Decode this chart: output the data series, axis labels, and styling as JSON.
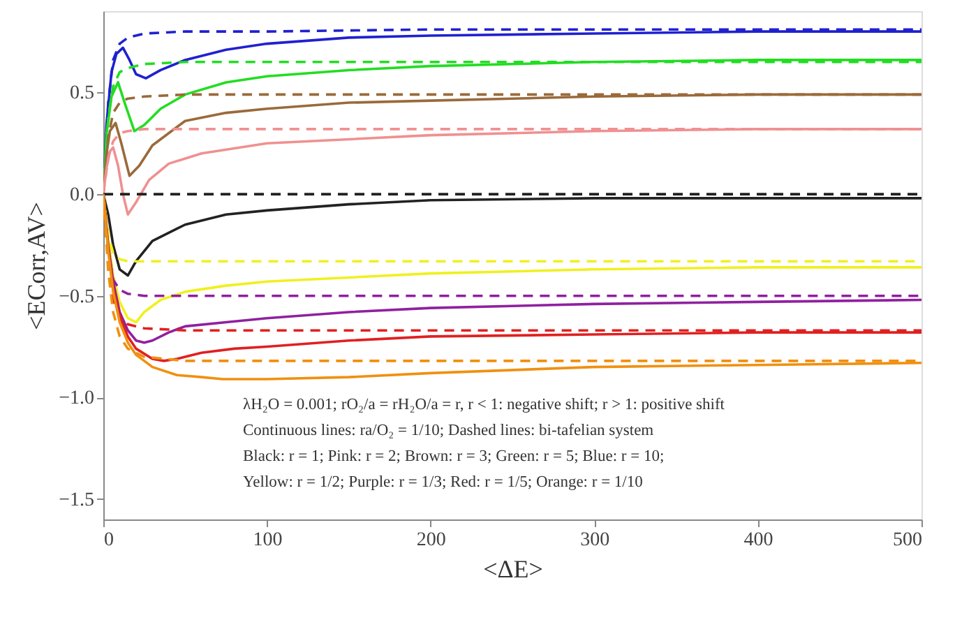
{
  "chart_data": {
    "type": "line",
    "xlabel": "<ΔE>",
    "ylabel": "<ECorr,AV>",
    "xlim": [
      0,
      500
    ],
    "ylim": [
      -1.6,
      0.9
    ],
    "xticks": [
      0,
      100,
      200,
      300,
      400,
      500
    ],
    "yticks": [
      {
        "value": -1.5,
        "label": "−1.5"
      },
      {
        "value": -1.0,
        "label": "−1.0"
      },
      {
        "value": -0.5,
        "label": "−0.5"
      },
      {
        "value": 0,
        "label": "0.0"
      },
      {
        "value": 0.5,
        "label": "0.5"
      }
    ],
    "grid": false,
    "annotations": [
      "λH₂O = 0.001; rO₂/a = rH₂O/a = r, r < 1: negative shift; r > 1: positive shift",
      "Continuous lines: ra/O₂ = 1/10; Dashed lines: bi-tafelian system",
      "Black: r = 1; Pink: r = 2; Brown: r = 3; Green: r = 5; Blue: r = 10;",
      "Yellow: r = 1/2; Purple: r = 1/3; Red: r = 1/5; Orange: r = 1/10"
    ],
    "series": [
      {
        "color": "#2020d0",
        "line_style": "solid",
        "x": [
          0,
          2,
          5,
          8,
          12,
          16,
          20,
          26,
          35,
          50,
          75,
          100,
          150,
          200,
          300,
          400,
          500
        ],
        "values": [
          0,
          0.35,
          0.6,
          0.69,
          0.72,
          0.66,
          0.59,
          0.57,
          0.61,
          0.66,
          0.71,
          0.74,
          0.77,
          0.78,
          0.79,
          0.8,
          0.8
        ]
      },
      {
        "color": "#2020d0",
        "line_style": "dashed",
        "x": [
          0,
          3,
          6,
          10,
          15,
          25,
          50,
          100,
          200,
          500
        ],
        "values": [
          0,
          0.45,
          0.66,
          0.74,
          0.77,
          0.79,
          0.8,
          0.8,
          0.81,
          0.81
        ]
      },
      {
        "color": "#22dd22",
        "line_style": "solid",
        "x": [
          0,
          2,
          5,
          9,
          13,
          19,
          25,
          35,
          50,
          75,
          100,
          150,
          200,
          300,
          400,
          500
        ],
        "values": [
          0,
          0.3,
          0.48,
          0.55,
          0.45,
          0.31,
          0.34,
          0.42,
          0.49,
          0.55,
          0.58,
          0.61,
          0.63,
          0.65,
          0.66,
          0.66
        ]
      },
      {
        "color": "#22dd22",
        "line_style": "dashed",
        "x": [
          0,
          3,
          6,
          10,
          15,
          25,
          50,
          100,
          200,
          500
        ],
        "values": [
          0,
          0.38,
          0.53,
          0.6,
          0.62,
          0.64,
          0.65,
          0.65,
          0.65,
          0.65
        ]
      },
      {
        "color": "#9a6a3a",
        "line_style": "solid",
        "x": [
          0,
          2,
          4,
          7.5,
          11,
          16,
          22,
          30,
          50,
          75,
          100,
          150,
          200,
          300,
          400,
          500
        ],
        "values": [
          0,
          0.2,
          0.31,
          0.35,
          0.25,
          0.09,
          0.14,
          0.24,
          0.36,
          0.4,
          0.42,
          0.45,
          0.46,
          0.48,
          0.49,
          0.49
        ]
      },
      {
        "color": "#9a6a3a",
        "line_style": "dashed",
        "x": [
          0,
          3,
          6,
          10,
          15,
          25,
          50,
          100,
          200,
          500
        ],
        "values": [
          0,
          0.28,
          0.4,
          0.45,
          0.47,
          0.48,
          0.49,
          0.49,
          0.49,
          0.49
        ]
      },
      {
        "color": "#f09090",
        "line_style": "solid",
        "x": [
          0,
          2,
          4,
          6,
          9,
          12,
          15,
          20,
          28,
          40,
          60,
          100,
          150,
          200,
          300,
          400,
          500
        ],
        "values": [
          0,
          0.13,
          0.21,
          0.23,
          0.14,
          0.0,
          -0.1,
          -0.04,
          0.07,
          0.15,
          0.2,
          0.25,
          0.27,
          0.29,
          0.31,
          0.32,
          0.32
        ]
      },
      {
        "color": "#f09090",
        "line_style": "dashed",
        "x": [
          0,
          3,
          6,
          10,
          15,
          25,
          50,
          100,
          200,
          500
        ],
        "values": [
          0,
          0.18,
          0.26,
          0.3,
          0.31,
          0.32,
          0.32,
          0.32,
          0.32,
          0.32
        ]
      },
      {
        "color": "#222222",
        "line_style": "solid",
        "x": [
          0,
          3,
          6,
          10,
          15,
          20,
          30,
          50,
          75,
          100,
          150,
          200,
          300,
          400,
          500
        ],
        "values": [
          0,
          -0.1,
          -0.25,
          -0.37,
          -0.4,
          -0.33,
          -0.23,
          -0.15,
          -0.1,
          -0.08,
          -0.05,
          -0.03,
          -0.02,
          -0.02,
          -0.02
        ]
      },
      {
        "color": "#222222",
        "line_style": "dashed",
        "x": [
          0,
          100,
          200,
          300,
          400,
          500
        ],
        "values": [
          0,
          0,
          0,
          0,
          0,
          0
        ]
      },
      {
        "color": "#f0f020",
        "line_style": "solid",
        "x": [
          0,
          3,
          6,
          10,
          15,
          20,
          25,
          35,
          50,
          75,
          100,
          150,
          200,
          300,
          400,
          500
        ],
        "values": [
          0,
          -0.22,
          -0.4,
          -0.53,
          -0.61,
          -0.63,
          -0.58,
          -0.52,
          -0.48,
          -0.45,
          -0.43,
          -0.41,
          -0.39,
          -0.37,
          -0.36,
          -0.36
        ]
      },
      {
        "color": "#f0f020",
        "line_style": "dashed",
        "x": [
          0,
          3,
          6,
          10,
          15,
          25,
          50,
          100,
          200,
          500
        ],
        "values": [
          0,
          -0.2,
          -0.29,
          -0.32,
          -0.33,
          -0.33,
          -0.33,
          -0.33,
          -0.33,
          -0.33
        ]
      },
      {
        "color": "#9020a0",
        "line_style": "solid",
        "x": [
          0,
          3,
          6,
          10,
          15,
          20,
          25,
          30,
          40,
          50,
          75,
          100,
          150,
          200,
          300,
          400,
          500
        ],
        "values": [
          0,
          -0.25,
          -0.43,
          -0.58,
          -0.67,
          -0.72,
          -0.73,
          -0.72,
          -0.68,
          -0.65,
          -0.63,
          -0.61,
          -0.58,
          -0.56,
          -0.54,
          -0.53,
          -0.52
        ]
      },
      {
        "color": "#9020a0",
        "line_style": "dashed",
        "x": [
          0,
          3,
          6,
          10,
          15,
          25,
          50,
          100,
          200,
          500
        ],
        "values": [
          0,
          -0.28,
          -0.42,
          -0.47,
          -0.49,
          -0.5,
          -0.5,
          -0.5,
          -0.5,
          -0.5
        ]
      },
      {
        "color": "#e02020",
        "line_style": "solid",
        "x": [
          0,
          3,
          6,
          10,
          15,
          20,
          30,
          37,
          45,
          60,
          80,
          100,
          150,
          200,
          300,
          400,
          500
        ],
        "values": [
          0,
          -0.27,
          -0.46,
          -0.6,
          -0.7,
          -0.76,
          -0.81,
          -0.82,
          -0.81,
          -0.78,
          -0.76,
          -0.75,
          -0.72,
          -0.7,
          -0.69,
          -0.68,
          -0.68
        ]
      },
      {
        "color": "#e02020",
        "line_style": "dashed",
        "x": [
          0,
          3,
          6,
          10,
          15,
          25,
          50,
          100,
          200,
          500
        ],
        "values": [
          0,
          -0.35,
          -0.52,
          -0.6,
          -0.64,
          -0.66,
          -0.67,
          -0.67,
          -0.67,
          -0.67
        ]
      },
      {
        "color": "#f09010",
        "line_style": "solid",
        "x": [
          0,
          3,
          6,
          10,
          15,
          20,
          30,
          45,
          60,
          73,
          100,
          150,
          200,
          300,
          400,
          500
        ],
        "values": [
          0,
          -0.28,
          -0.48,
          -0.63,
          -0.73,
          -0.79,
          -0.85,
          -0.89,
          -0.9,
          -0.91,
          -0.91,
          -0.9,
          -0.88,
          -0.85,
          -0.84,
          -0.83
        ]
      },
      {
        "color": "#f09010",
        "line_style": "dashed",
        "x": [
          0,
          3,
          6,
          10,
          15,
          25,
          50,
          100,
          200,
          500
        ],
        "values": [
          0,
          -0.38,
          -0.58,
          -0.7,
          -0.76,
          -0.8,
          -0.82,
          -0.82,
          -0.82,
          -0.82
        ]
      }
    ]
  }
}
